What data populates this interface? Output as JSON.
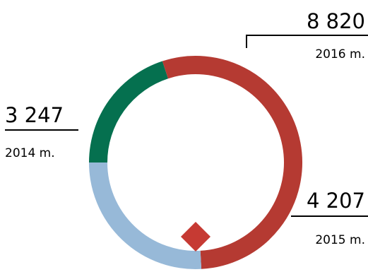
{
  "chart_data": {
    "type": "pie",
    "style": "donut",
    "start_angle_deg": 180,
    "direction": "clockwise",
    "segments": [
      {
        "year": "2014 m.",
        "value": 3247,
        "value_label": "3 247",
        "color": "#05704f"
      },
      {
        "year": "2016 m.",
        "value": 8820,
        "value_label": "8 820",
        "color": "#b53a32"
      },
      {
        "year": "2015 m.",
        "value": 4207,
        "value_label": "4 207",
        "color": "#97b9d8"
      }
    ],
    "marker_color": "#c63a33"
  }
}
